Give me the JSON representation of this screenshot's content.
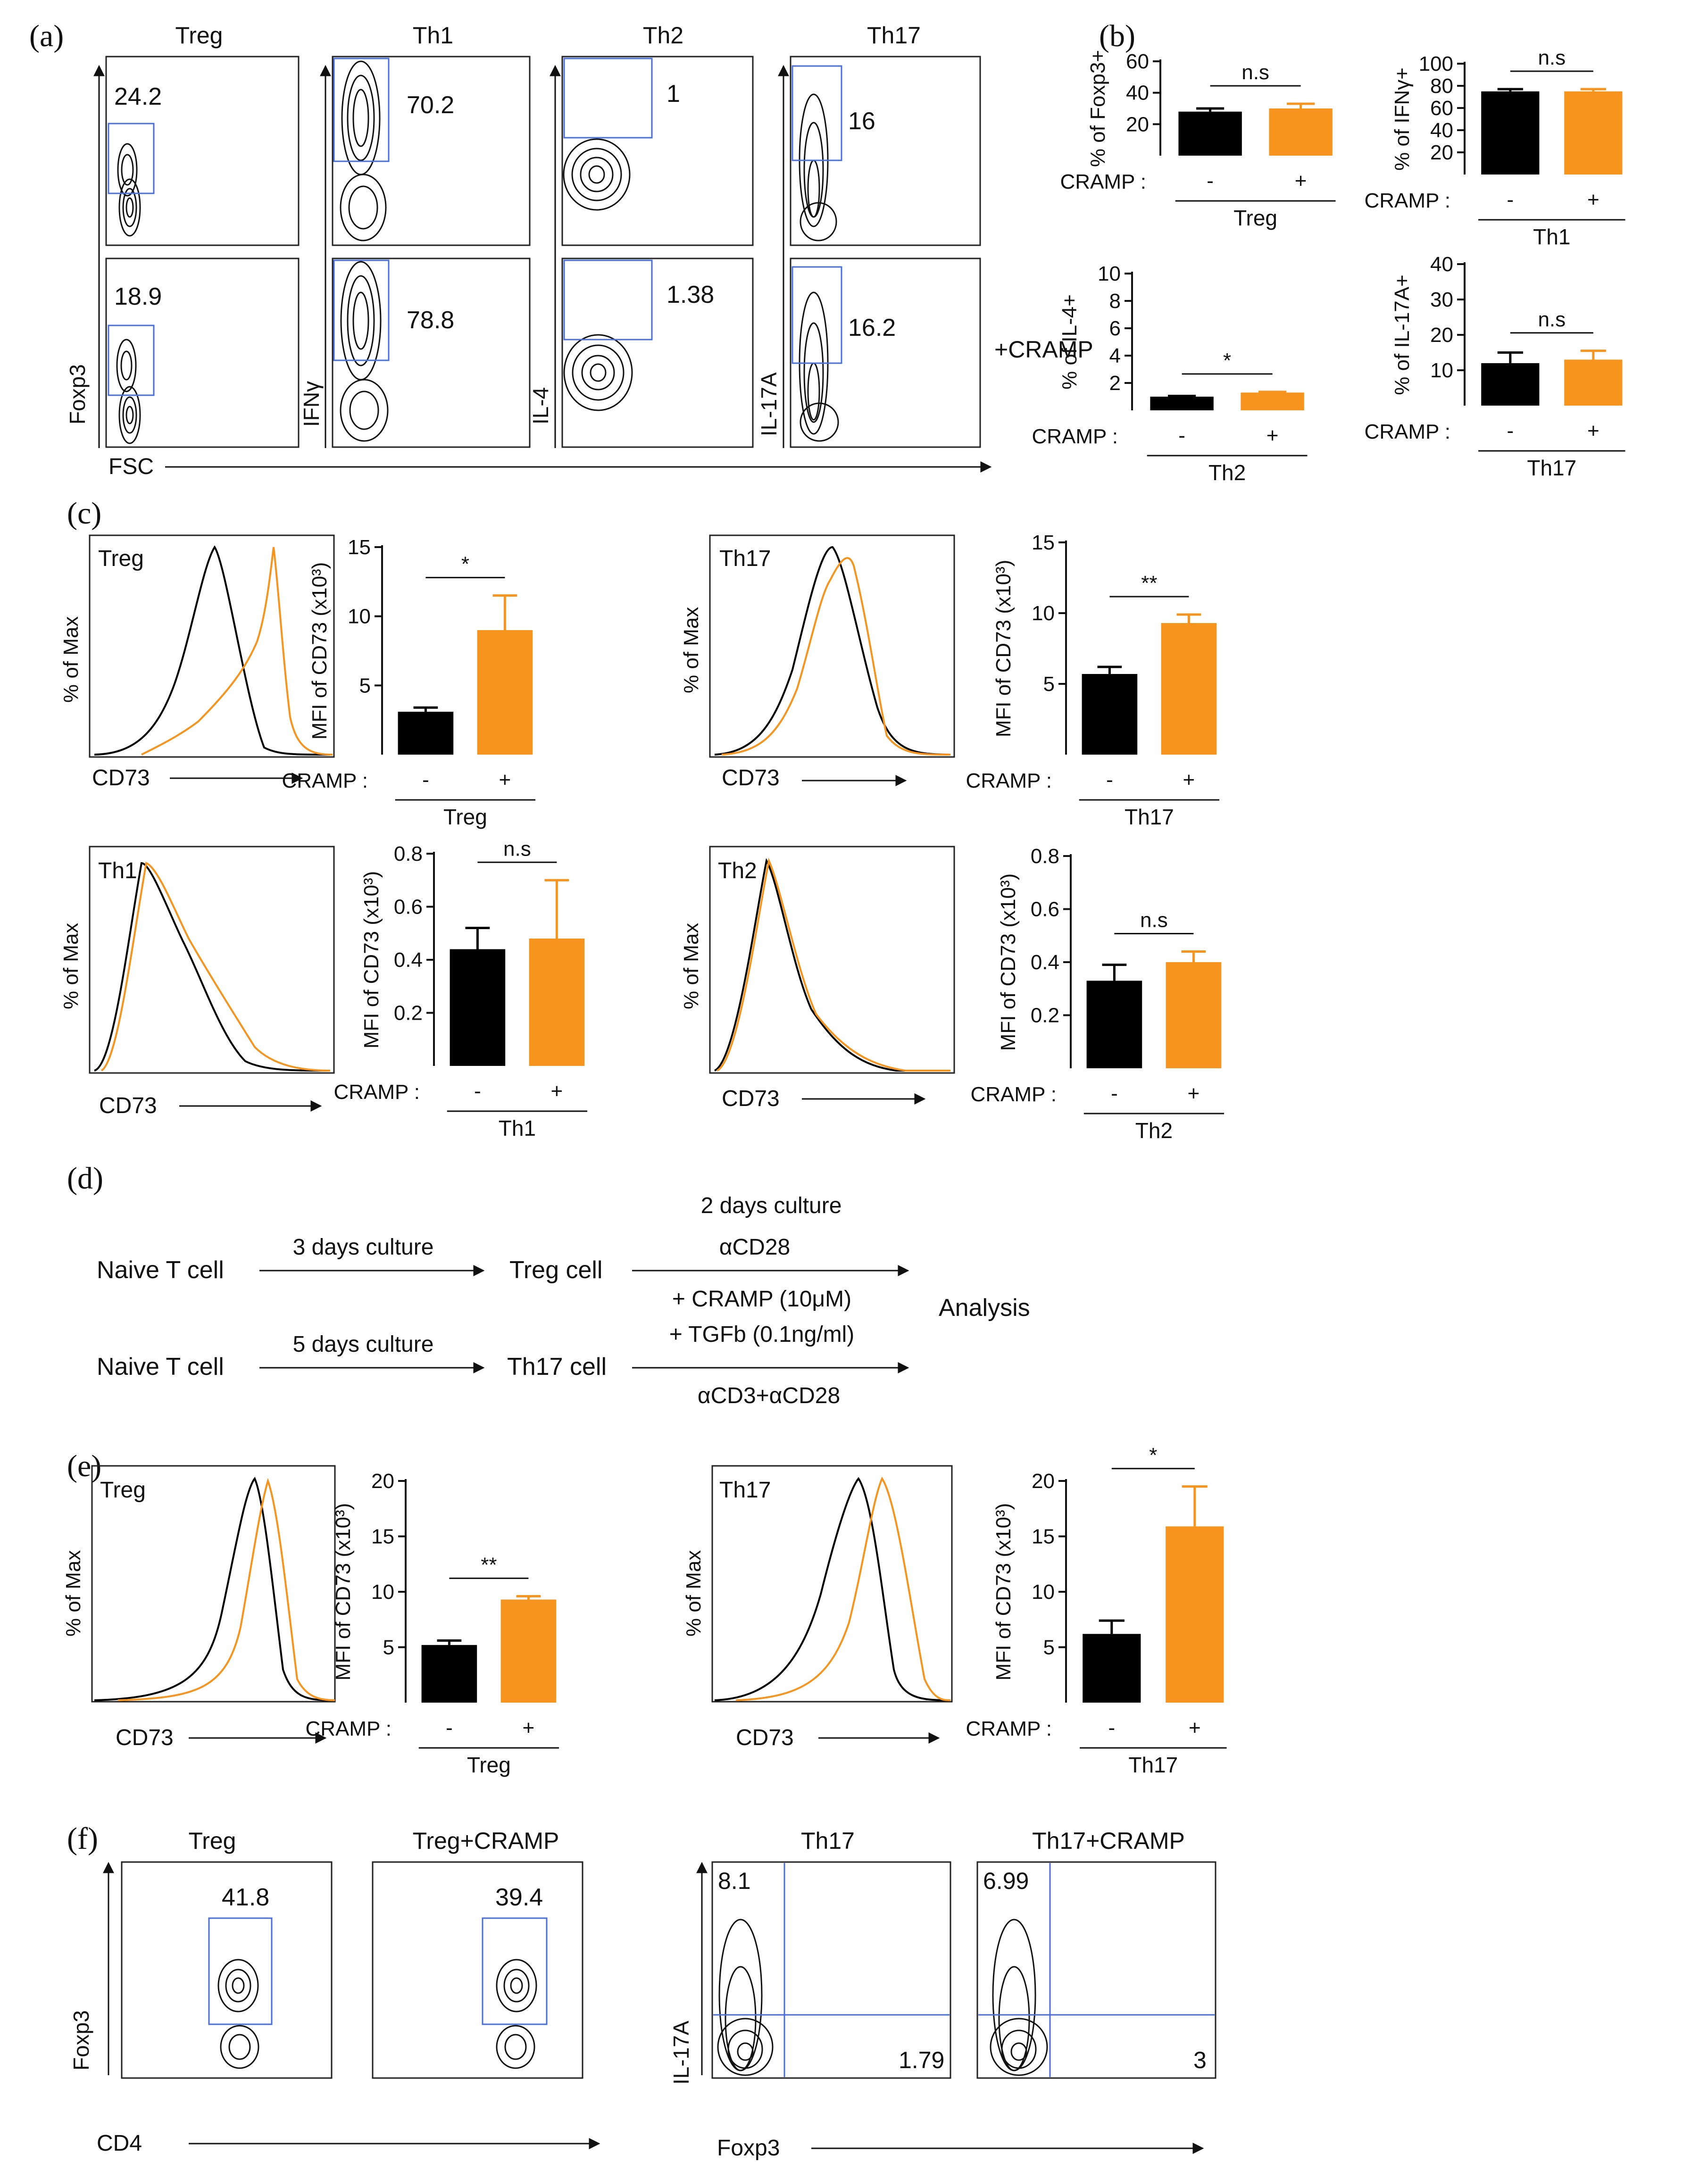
{
  "colors": {
    "control": "#000000",
    "cramp": "#f7941d",
    "gate": "#4a6fd8"
  },
  "panel_labels": {
    "a": "(a)",
    "b": "(b)",
    "c": "(c)",
    "d": "(d)",
    "e": "(e)",
    "f": "(f)"
  },
  "panel_a": {
    "column_titles": [
      "Treg",
      "Th1",
      "Th2",
      "Th17"
    ],
    "y_axis_labels": [
      "Foxp3",
      "IFNγ",
      "IL-4",
      "IL-17A"
    ],
    "x_axis_label": "FSC",
    "row_label_cramp": "+CRAMP",
    "gate_values_control": [
      "24.2",
      "70.2",
      "1",
      "16"
    ],
    "gate_values_cramp": [
      "18.9",
      "78.8",
      "1.38",
      "16.2"
    ]
  },
  "panel_d": {
    "row1_start": "Naive T cell",
    "row1_step": "3 days culture",
    "row1_cell": "Treg cell",
    "row2_start": "Naive T cell",
    "row2_step": "5 days culture",
    "row2_cell": "Th17 cell",
    "second_step": "2 days culture",
    "row1_stim": "αCD28",
    "treatment_1": "+ CRAMP (10μM)",
    "treatment_2": "+ TGFb (0.1ng/ml)",
    "row2_stim": "αCD3+αCD28",
    "end": "Analysis"
  },
  "panel_f": {
    "titles": [
      "Treg",
      "Treg+CRAMP",
      "Th17",
      "Th17+CRAMP"
    ],
    "left_y": "Foxp3",
    "left_x": "CD4",
    "right_y": "IL-17A",
    "right_x": "Foxp3",
    "gate_values": [
      "41.8",
      "39.4"
    ],
    "quad_values": {
      "th17_ul": "8.1",
      "th17_lr": "1.79",
      "cramp_ul": "6.99",
      "cramp_lr": "3"
    }
  },
  "histograms": {
    "y_label": "% of Max",
    "x_label": "CD73",
    "c_titles": [
      "Treg",
      "Th17",
      "Th1",
      "Th2"
    ],
    "e_titles": [
      "Treg",
      "Th17"
    ]
  },
  "chart_data": [
    {
      "id": "b-treg",
      "type": "bar",
      "title": "Treg",
      "ylabel": "% of Foxp3+",
      "xlabel": "CRAMP :",
      "categories": [
        "-",
        "+"
      ],
      "values": [
        28,
        30
      ],
      "errors": [
        2,
        3
      ],
      "ylim": [
        0,
        60
      ],
      "yticks": [
        "20",
        "40",
        "60"
      ],
      "significance": "n.s"
    },
    {
      "id": "b-th1",
      "type": "bar",
      "title": "Th1",
      "ylabel": "% of IFNγ+",
      "xlabel": "CRAMP :",
      "categories": [
        "-",
        "+"
      ],
      "values": [
        75,
        75
      ],
      "errors": [
        2,
        2
      ],
      "ylim": [
        0,
        100
      ],
      "yticks": [
        "20",
        "40",
        "60",
        "80",
        "100"
      ],
      "significance": "n.s"
    },
    {
      "id": "b-th2",
      "type": "bar",
      "title": "Th2",
      "ylabel": "% of IL-4+",
      "xlabel": "CRAMP :",
      "categories": [
        "-",
        "+"
      ],
      "values": [
        1,
        1.3
      ],
      "errors": [
        0.05,
        0.05
      ],
      "ylim": [
        0,
        10
      ],
      "yticks": [
        "2",
        "4",
        "6",
        "8",
        "10"
      ],
      "significance": "*"
    },
    {
      "id": "b-th17",
      "type": "bar",
      "title": "Th17",
      "ylabel": "% of IL-17A+",
      "xlabel": "CRAMP :",
      "categories": [
        "-",
        "+"
      ],
      "values": [
        12,
        13
      ],
      "errors": [
        3,
        2.5
      ],
      "ylim": [
        0,
        40
      ],
      "yticks": [
        "10",
        "20",
        "30",
        "40"
      ],
      "significance": "n.s"
    },
    {
      "id": "c-treg",
      "type": "bar",
      "title": "Treg",
      "ylabel": "MFI of CD73 (x10³)",
      "xlabel": "CRAMP :",
      "categories": [
        "-",
        "+"
      ],
      "values": [
        3.1,
        9.0
      ],
      "errors": [
        0.3,
        2.5
      ],
      "ylim": [
        0,
        15
      ],
      "yticks": [
        "5",
        "10",
        "15"
      ],
      "significance": "*"
    },
    {
      "id": "c-th17",
      "type": "bar",
      "title": "Th17",
      "ylabel": "MFI of CD73 (x10³)",
      "xlabel": "CRAMP :",
      "categories": [
        "-",
        "+"
      ],
      "values": [
        5.7,
        9.3
      ],
      "errors": [
        0.5,
        0.6
      ],
      "ylim": [
        0,
        15
      ],
      "yticks": [
        "5",
        "10",
        "15"
      ],
      "significance": "**"
    },
    {
      "id": "c-th1",
      "type": "bar",
      "title": "Th1",
      "ylabel": "MFI of CD73 (x10³)",
      "xlabel": "CRAMP :",
      "categories": [
        "-",
        "+"
      ],
      "values": [
        0.44,
        0.48
      ],
      "errors": [
        0.08,
        0.22
      ],
      "ylim": [
        0,
        0.8
      ],
      "yticks": [
        "0.2",
        "0.4",
        "0.6",
        "0.8"
      ],
      "significance": "n.s"
    },
    {
      "id": "c-th2",
      "type": "bar",
      "title": "Th2",
      "ylabel": "MFI of CD73 (x10³)",
      "xlabel": "CRAMP :",
      "categories": [
        "-",
        "+"
      ],
      "values": [
        0.33,
        0.4
      ],
      "errors": [
        0.06,
        0.04
      ],
      "ylim": [
        0,
        0.8
      ],
      "yticks": [
        "0.2",
        "0.4",
        "0.6",
        "0.8"
      ],
      "significance": "n.s"
    },
    {
      "id": "e-treg",
      "type": "bar",
      "title": "Treg",
      "ylabel": "MFI of CD73 (x10³)",
      "xlabel": "CRAMP :",
      "categories": [
        "-",
        "+"
      ],
      "values": [
        5.2,
        9.3
      ],
      "errors": [
        0.4,
        0.3
      ],
      "ylim": [
        0,
        20
      ],
      "yticks": [
        "5",
        "10",
        "15",
        "20"
      ],
      "significance": "**"
    },
    {
      "id": "e-th17",
      "type": "bar",
      "title": "Th17",
      "ylabel": "MFI of CD73 (x10³)",
      "xlabel": "CRAMP :",
      "categories": [
        "-",
        "+"
      ],
      "values": [
        6.2,
        15.9
      ],
      "errors": [
        1.2,
        3.6
      ],
      "ylim": [
        0,
        20
      ],
      "yticks": [
        "5",
        "10",
        "15",
        "20"
      ],
      "significance": "*"
    }
  ]
}
